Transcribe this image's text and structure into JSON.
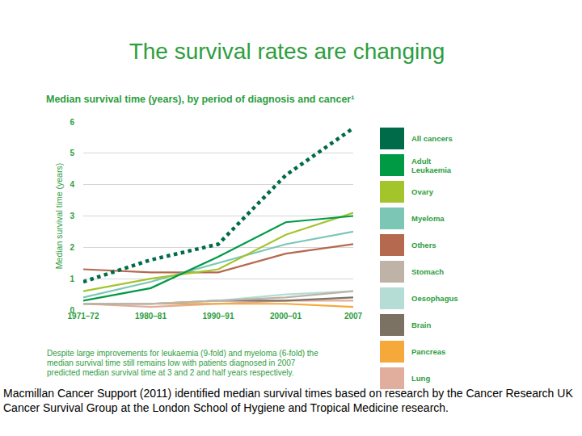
{
  "page": {
    "title": "The survival rates are changing",
    "caption": "Macmillan Cancer Support (2011) identified median survival times based on research by the Cancer Research UK Cancer Survival Group at the London School of Hygiene and Tropical Medicine research."
  },
  "chart_data": {
    "type": "line",
    "title": "Median survival time (years), by period of diagnosis and cancer¹",
    "ylabel": "Median survival time (years)",
    "note": "Despite large improvements for leukaemia (9-fold) and myeloma (6-fold) the median survival time still remains low with patients diagnosed in 2007 predicted median survival time at 3 and 2 and half years respectively.",
    "categories": [
      "1971–72",
      "1980–81",
      "1990–91",
      "2000–01",
      "2007"
    ],
    "ylim": [
      0,
      6
    ],
    "yticks": [
      0,
      1,
      2,
      3,
      4,
      5,
      6
    ],
    "grid": true,
    "series": [
      {
        "name": "All cancers",
        "color": "#006b48",
        "line_style": "dotted",
        "values": [
          0.9,
          1.6,
          2.1,
          4.3,
          5.8
        ]
      },
      {
        "name": "Adult Leukaemia",
        "color": "#009a44",
        "values": [
          0.3,
          0.7,
          1.7,
          2.8,
          3.0
        ]
      },
      {
        "name": "Ovary",
        "color": "#a4c42c",
        "values": [
          0.6,
          1.0,
          1.3,
          2.4,
          3.1
        ]
      },
      {
        "name": "Myeloma",
        "color": "#7cc6b6",
        "values": [
          0.4,
          0.9,
          1.5,
          2.1,
          2.5
        ]
      },
      {
        "name": "Others",
        "color": "#b5694f",
        "values": [
          1.3,
          1.2,
          1.2,
          1.8,
          2.1
        ]
      },
      {
        "name": "Stomach",
        "color": "#bfb3a8",
        "values": [
          0.2,
          0.2,
          0.3,
          0.4,
          0.6
        ]
      },
      {
        "name": "Oesophagus",
        "color": "#b5ddd6",
        "values": [
          0.2,
          0.2,
          0.3,
          0.5,
          0.6
        ]
      },
      {
        "name": "Brain",
        "color": "#7c7263",
        "values": [
          0.2,
          0.2,
          0.3,
          0.3,
          0.4
        ]
      },
      {
        "name": "Pancreas",
        "color": "#f4a93a",
        "values": [
          0.2,
          0.2,
          0.2,
          0.2,
          0.1
        ]
      },
      {
        "name": "Lung",
        "color": "#e1ad9c",
        "values": [
          0.2,
          0.1,
          0.2,
          0.3,
          0.3
        ]
      }
    ]
  }
}
